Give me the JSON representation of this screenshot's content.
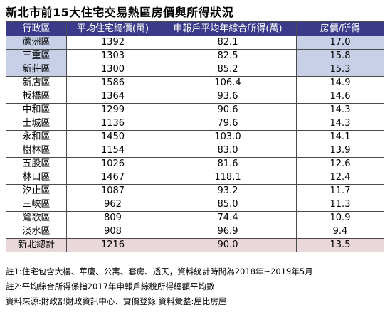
{
  "title": "新北市前15大住宅交易熱區房價與所得狀況",
  "table": {
    "headers": [
      "行政區",
      "平均住宅總價(萬)",
      "申報戶平均年綜合所得(萬)",
      "房價/所得"
    ],
    "rows": [
      {
        "district": "蘆洲區",
        "price": "1392",
        "income": "82.1",
        "ratio": "17.0",
        "highlight": true
      },
      {
        "district": "三重區",
        "price": "1303",
        "income": "82.5",
        "ratio": "15.8",
        "highlight": true
      },
      {
        "district": "新莊區",
        "price": "1300",
        "income": "85.2",
        "ratio": "15.3",
        "highlight": true
      },
      {
        "district": "新店區",
        "price": "1586",
        "income": "106.4",
        "ratio": "14.9",
        "highlight": false
      },
      {
        "district": "板橋區",
        "price": "1364",
        "income": "93.6",
        "ratio": "14.6",
        "highlight": false
      },
      {
        "district": "中和區",
        "price": "1299",
        "income": "90.6",
        "ratio": "14.3",
        "highlight": false
      },
      {
        "district": "土城區",
        "price": "1136",
        "income": "79.6",
        "ratio": "14.3",
        "highlight": false
      },
      {
        "district": "永和區",
        "price": "1450",
        "income": "103.0",
        "ratio": "14.1",
        "highlight": false
      },
      {
        "district": "樹林區",
        "price": "1154",
        "income": "83.0",
        "ratio": "13.9",
        "highlight": false
      },
      {
        "district": "五股區",
        "price": "1026",
        "income": "81.6",
        "ratio": "12.6",
        "highlight": false
      },
      {
        "district": "林口區",
        "price": "1467",
        "income": "118.1",
        "ratio": "12.4",
        "highlight": false
      },
      {
        "district": "汐止區",
        "price": "1087",
        "income": "93.2",
        "ratio": "11.7",
        "highlight": false
      },
      {
        "district": "三峽區",
        "price": "962",
        "income": "85.0",
        "ratio": "11.3",
        "highlight": false
      },
      {
        "district": "鶯歌區",
        "price": "809",
        "income": "74.4",
        "ratio": "10.9",
        "highlight": false
      },
      {
        "district": "淡水區",
        "price": "908",
        "income": "96.9",
        "ratio": "9.4",
        "highlight": false
      }
    ],
    "total": {
      "district": "新北總計",
      "price": "1216",
      "income": "90.0",
      "ratio": "13.5"
    }
  },
  "colors": {
    "header_bg": "#3b3a8a",
    "highlight_bg": "#c7d0e6",
    "total_bg": "#ead7da"
  },
  "notes": [
    "註1:住宅包含大樓、華廈、公寓、套房、透天，資料統計時間為2018年~2019年5月",
    "註2:平均綜合所得係指2017年申報戶綜稅所得總額平均數",
    "資料來源:財政部財政資訊中心、實價登錄  資料彙整:屋比房屋"
  ]
}
